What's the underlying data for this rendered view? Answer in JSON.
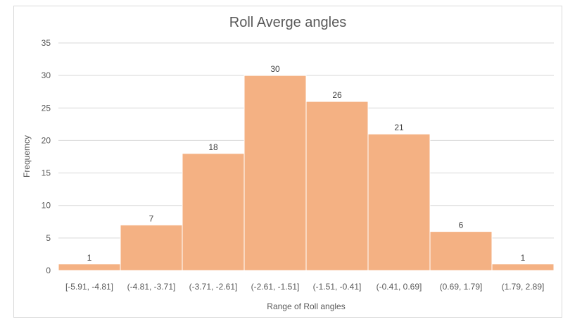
{
  "chart_data": {
    "type": "bar",
    "title": "Roll Averge angles",
    "xlabel": "Range of Roll angles",
    "ylabel": "Frequemcy",
    "categories": [
      "[-5.91, -4.81]",
      "(-4.81, -3.71]",
      "(-3.71, -2.61]",
      "(-2.61, -1.51]",
      "(-1.51, -0.41]",
      "(-0.41, 0.69]",
      "(0.69, 1.79]",
      "(1.79, 2.89]"
    ],
    "values": [
      1,
      7,
      18,
      30,
      26,
      21,
      6,
      1
    ],
    "ylim": [
      0,
      35
    ],
    "yticks": [
      0,
      5,
      10,
      15,
      20,
      25,
      30,
      35
    ],
    "grid": true,
    "legend": "none",
    "bar_color": "#F4B183",
    "data_labels": true
  }
}
